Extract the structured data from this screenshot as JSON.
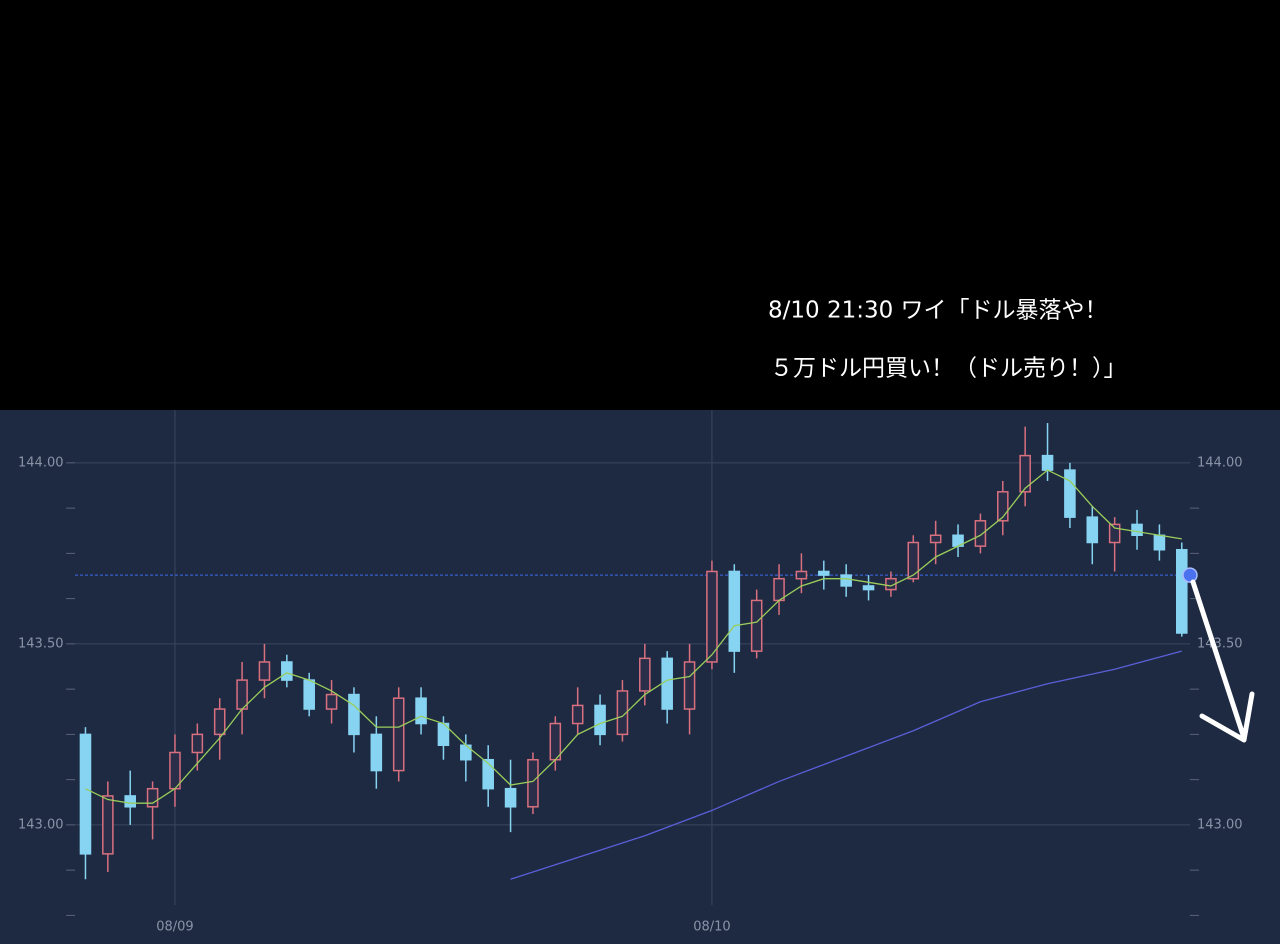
{
  "chart_data": {
    "type": "candlestick",
    "annotation": [
      "8/10 21:30 ワイ「ドル暴落や！",
      "５万ドル円買い！（ドル売り！）」"
    ],
    "up_color": "#d9707f",
    "down_color": "#86d3f2",
    "x": [
      -4,
      -3,
      -2,
      -1,
      0,
      1,
      2,
      3,
      4,
      5,
      6,
      7,
      8,
      9,
      10,
      11,
      12,
      13,
      14,
      15,
      16,
      17,
      18,
      19,
      20,
      21,
      22,
      23,
      24,
      25,
      26,
      27,
      28,
      29,
      30,
      31,
      32,
      33,
      34,
      35,
      36,
      37,
      38,
      39,
      40,
      41,
      42,
      43,
      44,
      45
    ],
    "open": [
      143.25,
      142.92,
      143.08,
      143.05,
      143.1,
      143.2,
      143.25,
      143.32,
      143.4,
      143.45,
      143.4,
      143.32,
      143.36,
      143.25,
      143.15,
      143.35,
      143.28,
      143.22,
      143.18,
      143.1,
      143.05,
      143.18,
      143.28,
      143.33,
      143.25,
      143.37,
      143.46,
      143.32,
      143.45,
      143.7,
      143.48,
      143.62,
      143.68,
      143.7,
      143.69,
      143.66,
      143.65,
      143.68,
      143.78,
      143.8,
      143.77,
      143.84,
      143.92,
      144.02,
      143.98,
      143.85,
      143.78,
      143.83,
      143.8,
      143.76
    ],
    "high": [
      143.27,
      143.12,
      143.15,
      143.12,
      143.25,
      143.28,
      143.35,
      143.45,
      143.5,
      143.47,
      143.42,
      143.4,
      143.38,
      143.3,
      143.38,
      143.38,
      143.3,
      143.25,
      143.22,
      143.18,
      143.2,
      143.3,
      143.38,
      143.36,
      143.4,
      143.5,
      143.48,
      143.5,
      143.73,
      143.72,
      143.65,
      143.72,
      143.75,
      143.73,
      143.72,
      143.69,
      143.7,
      143.8,
      143.84,
      143.83,
      143.86,
      143.95,
      144.1,
      144.11,
      144.0,
      143.88,
      143.85,
      143.87,
      143.83,
      143.78
    ],
    "low": [
      142.85,
      142.87,
      143.0,
      142.96,
      143.05,
      143.15,
      143.18,
      143.25,
      143.35,
      143.38,
      143.3,
      143.28,
      143.2,
      143.1,
      143.12,
      143.25,
      143.18,
      143.12,
      143.05,
      142.98,
      143.03,
      143.15,
      143.25,
      143.22,
      143.23,
      143.33,
      143.28,
      143.25,
      143.43,
      143.42,
      143.46,
      143.58,
      143.64,
      143.65,
      143.63,
      143.62,
      143.63,
      143.67,
      143.72,
      143.74,
      143.75,
      143.8,
      143.88,
      143.95,
      143.82,
      143.72,
      143.7,
      143.76,
      143.73,
      143.52
    ],
    "close": [
      142.92,
      143.08,
      143.05,
      143.1,
      143.2,
      143.25,
      143.32,
      143.4,
      143.45,
      143.4,
      143.32,
      143.36,
      143.25,
      143.15,
      143.35,
      143.28,
      143.22,
      143.18,
      143.1,
      143.05,
      143.18,
      143.28,
      143.33,
      143.25,
      143.37,
      143.46,
      143.32,
      143.45,
      143.7,
      143.48,
      143.62,
      143.68,
      143.7,
      143.69,
      143.66,
      143.65,
      143.68,
      143.78,
      143.8,
      143.77,
      143.84,
      143.92,
      144.02,
      143.98,
      143.85,
      143.78,
      143.83,
      143.8,
      143.76,
      143.53
    ],
    "series": [
      {
        "color": "#9acd5a",
        "x": [
          -4,
          -3,
          -2,
          -1,
          0,
          1,
          2,
          3,
          4,
          5,
          6,
          7,
          8,
          9,
          10,
          11,
          12,
          13,
          14,
          15,
          16,
          17,
          18,
          19,
          20,
          21,
          22,
          23,
          24,
          25,
          26,
          27,
          28,
          29,
          30,
          31,
          32,
          33,
          34,
          35,
          36,
          37,
          38,
          39,
          40,
          41,
          42,
          43,
          44,
          45
        ],
        "values": [
          143.1,
          143.07,
          143.06,
          143.06,
          143.1,
          143.17,
          143.24,
          143.32,
          143.38,
          143.42,
          143.4,
          143.37,
          143.33,
          143.27,
          143.27,
          143.3,
          143.28,
          143.22,
          143.17,
          143.11,
          143.12,
          143.18,
          143.25,
          143.28,
          143.3,
          143.36,
          143.4,
          143.41,
          143.47,
          143.55,
          143.56,
          143.62,
          143.66,
          143.68,
          143.68,
          143.67,
          143.66,
          143.69,
          143.74,
          143.77,
          143.8,
          143.85,
          143.93,
          143.98,
          143.95,
          143.88,
          143.82,
          143.81,
          143.8,
          143.79
        ]
      },
      {
        "color": "#5a5fd8",
        "x": [
          15,
          18,
          21,
          24,
          27,
          30,
          33,
          36,
          39,
          42,
          45
        ],
        "values": [
          142.85,
          142.91,
          142.97,
          143.04,
          143.12,
          143.19,
          143.26,
          143.34,
          143.39,
          143.43,
          143.48
        ]
      }
    ],
    "reference_line": {
      "value": 143.69,
      "color": "#3d6cf0"
    },
    "xlim": [
      -7.82,
      49.39
    ],
    "xticks": [
      {
        "value": 0,
        "label": "08/09"
      },
      {
        "value": 24,
        "label": "08/10"
      }
    ],
    "ylim": [
      142.671,
      144.146
    ],
    "yticks": [
      {
        "value": 143,
        "label": "143.00"
      },
      {
        "value": 143.5,
        "label": "143.50"
      },
      {
        "value": 144,
        "label": "144.00"
      }
    ],
    "yminorticks": [
      142.75,
      142.875,
      143.125,
      143.25,
      143.375,
      143.625,
      143.75,
      143.875
    ],
    "grid": true
  }
}
